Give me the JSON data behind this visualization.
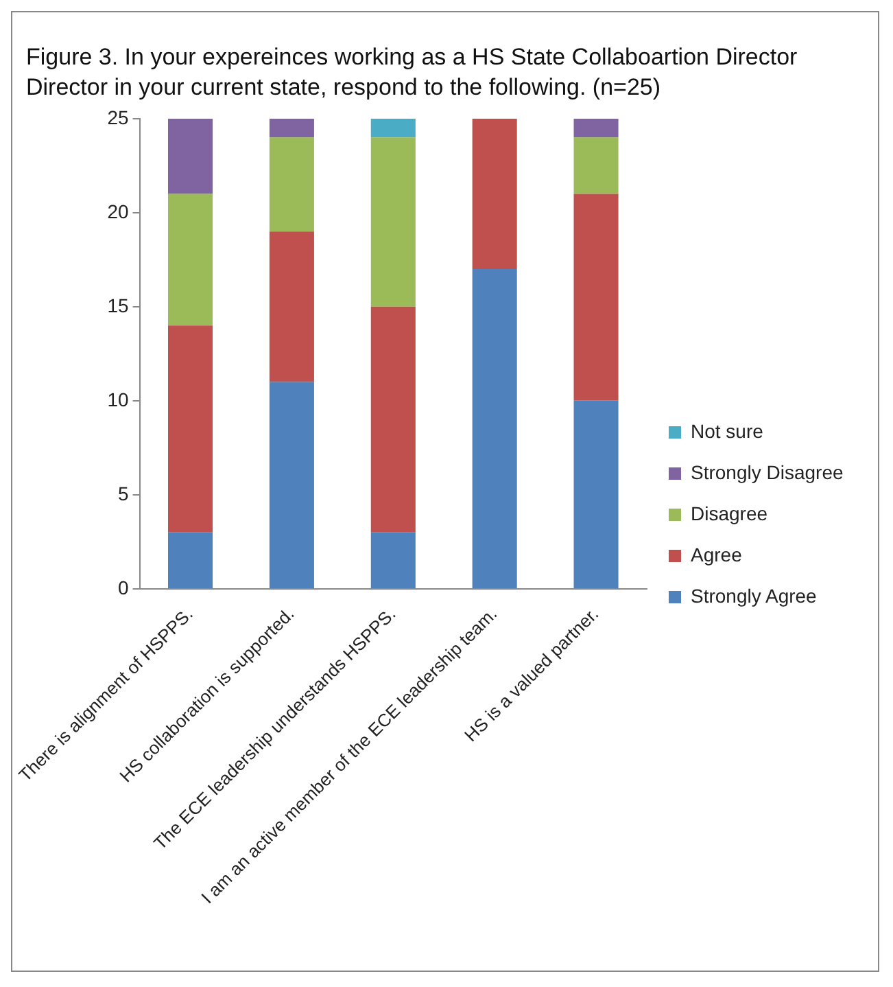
{
  "chart_data": {
    "type": "bar",
    "title": "Figure 3.  In your expereinces working as a HS State Collaboartion Director Director in your current state,  respond to the following. (n=25)",
    "categories": [
      "There is alignment of HSPPS.",
      "HS collaboration is supported.",
      "The ECE leadership understands HSPPS.",
      "I am an active member of the ECE leadership team.",
      "HS is a valued partner."
    ],
    "series": [
      {
        "name": "Strongly Agree",
        "color": "#4f81bd",
        "values": [
          3,
          11,
          3,
          17,
          10
        ]
      },
      {
        "name": "Agree",
        "color": "#c0504d",
        "values": [
          11,
          8,
          12,
          8,
          11
        ]
      },
      {
        "name": "Disagree",
        "color": "#9bbb59",
        "values": [
          7,
          5,
          9,
          0,
          3
        ]
      },
      {
        "name": "Strongly Disagree",
        "color": "#8064a2",
        "values": [
          4,
          1,
          0,
          0,
          1
        ]
      },
      {
        "name": "Not sure",
        "color": "#4bacc6",
        "values": [
          0,
          0,
          1,
          0,
          0
        ]
      }
    ],
    "stacked": true,
    "ylim": [
      0,
      25
    ],
    "yticks": [
      0,
      5,
      10,
      15,
      20,
      25
    ],
    "grid": false,
    "legend": "right"
  }
}
